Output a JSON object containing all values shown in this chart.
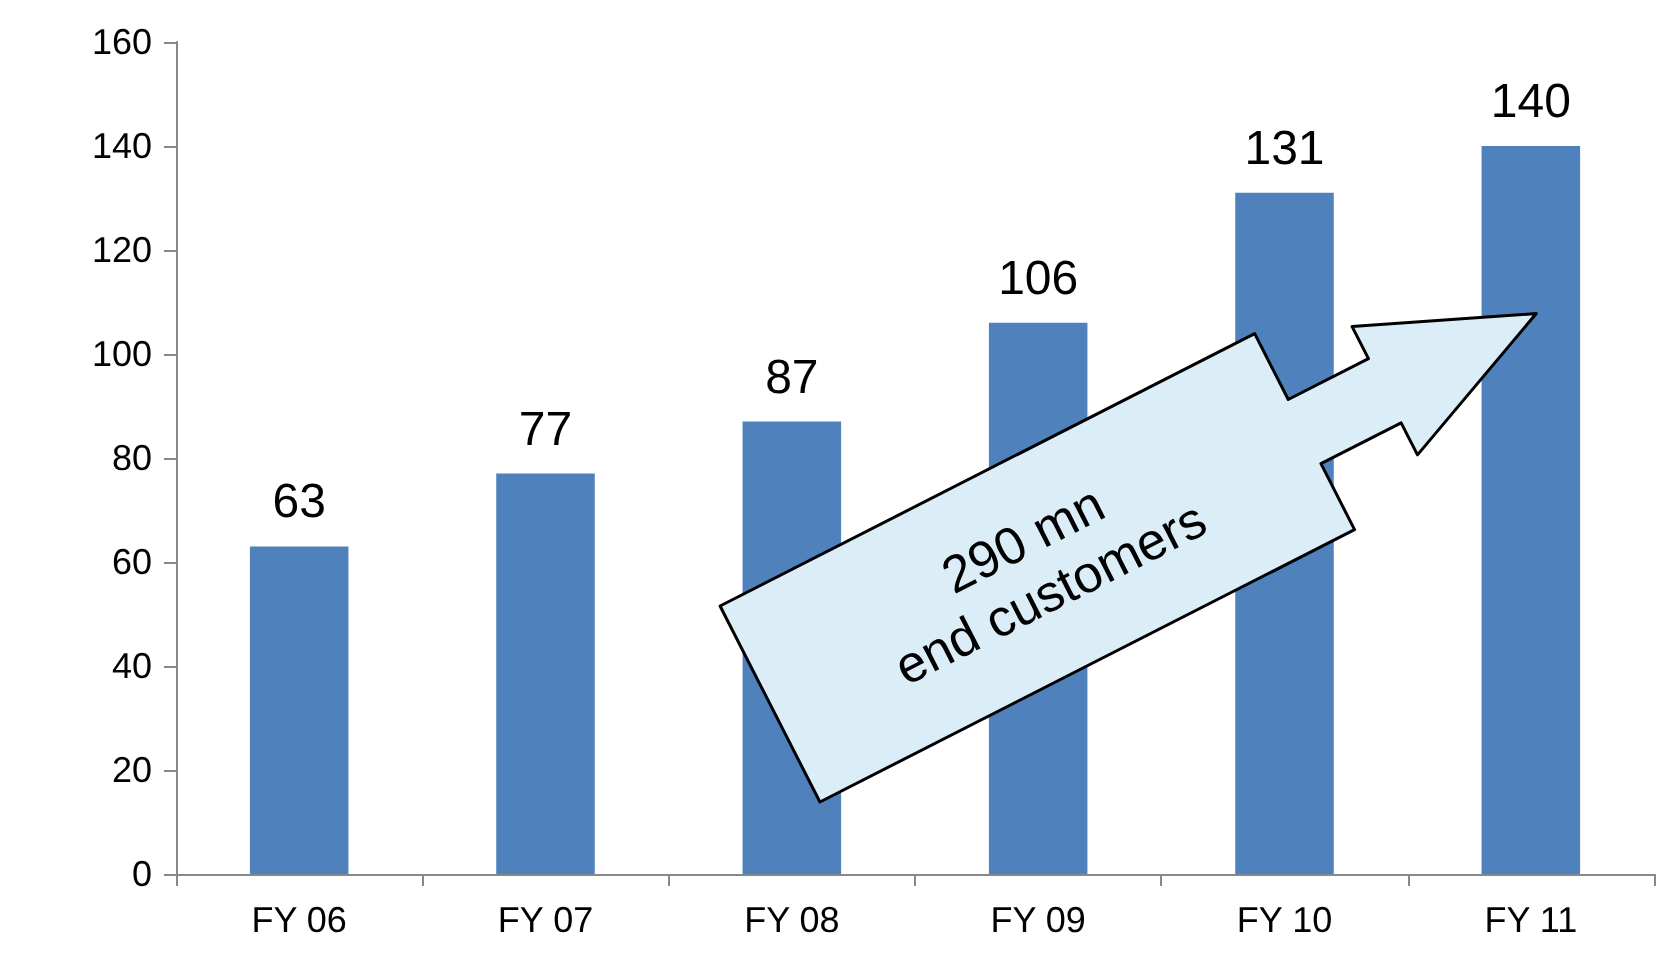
{
  "chart_data": {
    "type": "bar",
    "categories": [
      "FY 06",
      "FY 07",
      "FY 08",
      "FY 09",
      "FY 10",
      "FY 11"
    ],
    "values": [
      63,
      77,
      87,
      106,
      131,
      140
    ],
    "color": "#4f81bd",
    "ylim": [
      0,
      160
    ],
    "yticks": [
      0,
      20,
      40,
      60,
      80,
      100,
      120,
      140,
      160
    ],
    "grid": false,
    "data_labels": true,
    "annotations": [
      "290 mn\nend customers"
    ]
  }
}
